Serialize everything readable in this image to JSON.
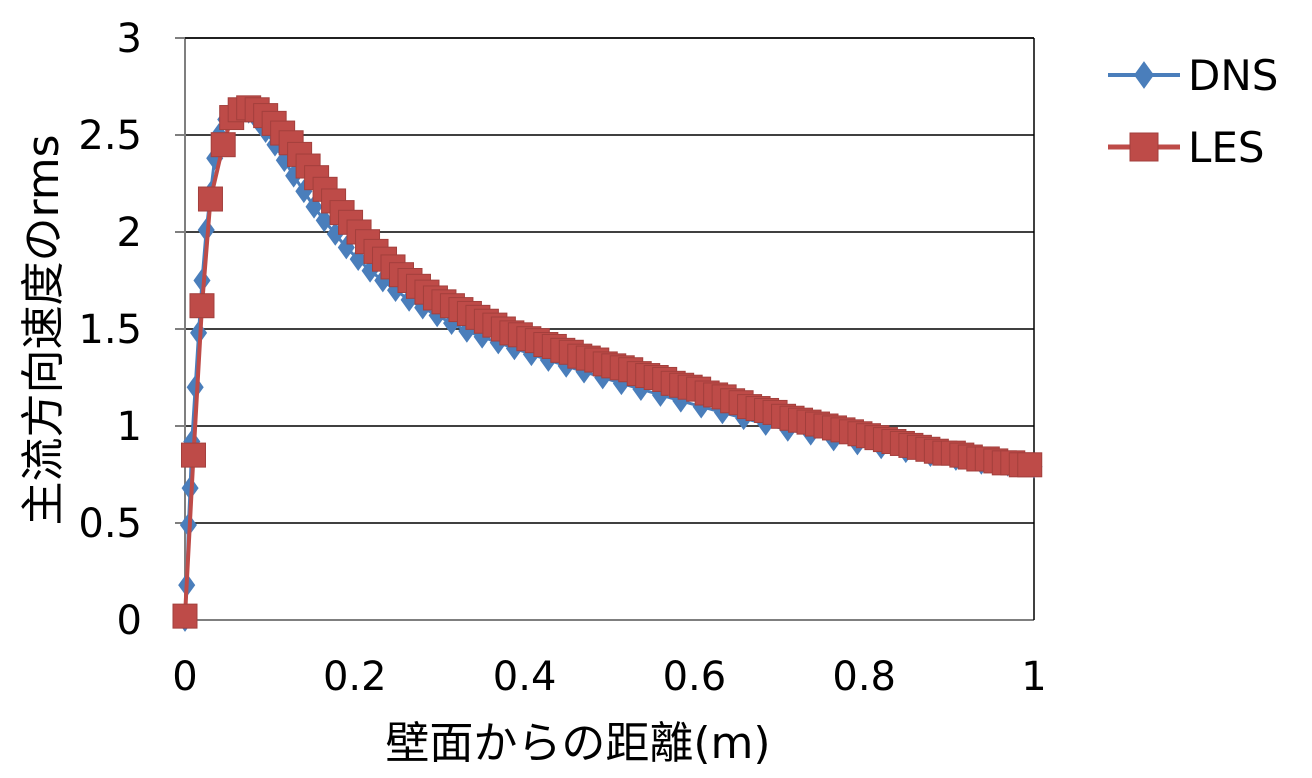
{
  "chart_data": {
    "type": "line",
    "xlabel": "壁面からの距離(m)",
    "ylabel": "主流方向速度のrms",
    "xlim": [
      0,
      1
    ],
    "ylim": [
      0,
      3
    ],
    "x_ticks": [
      "0",
      "0.2",
      "0.4",
      "0.6",
      "0.8",
      "1"
    ],
    "y_ticks": [
      "0",
      "0.5",
      "1",
      "1.5",
      "2",
      "2.5",
      "3"
    ],
    "grid": "horizontal",
    "legend_position": "top-right",
    "series": [
      {
        "name": "DNS",
        "color": "#4a7ebb",
        "marker": "diamond",
        "x": [
          0.0,
          0.002,
          0.004,
          0.006,
          0.008,
          0.012,
          0.016,
          0.02,
          0.025,
          0.03,
          0.035,
          0.04,
          0.048,
          0.056,
          0.065,
          0.075,
          0.085,
          0.095,
          0.106,
          0.117,
          0.128,
          0.14,
          0.152,
          0.164,
          0.177,
          0.19,
          0.204,
          0.218,
          0.233,
          0.248,
          0.264,
          0.28,
          0.297,
          0.314,
          0.332,
          0.35,
          0.369,
          0.388,
          0.408,
          0.428,
          0.449,
          0.47,
          0.492,
          0.514,
          0.537,
          0.56,
          0.584,
          0.608,
          0.633,
          0.658,
          0.684,
          0.71,
          0.737,
          0.764,
          0.792,
          0.82,
          0.849,
          0.878,
          0.908,
          0.938,
          0.969,
          1.0
        ],
        "y": [
          0.0,
          0.18,
          0.49,
          0.68,
          0.92,
          1.2,
          1.48,
          1.75,
          2.01,
          2.2,
          2.38,
          2.5,
          2.58,
          2.62,
          2.63,
          2.62,
          2.58,
          2.52,
          2.45,
          2.37,
          2.29,
          2.21,
          2.13,
          2.06,
          1.99,
          1.92,
          1.86,
          1.8,
          1.75,
          1.7,
          1.65,
          1.61,
          1.57,
          1.53,
          1.49,
          1.46,
          1.43,
          1.4,
          1.37,
          1.34,
          1.31,
          1.28,
          1.25,
          1.22,
          1.19,
          1.16,
          1.13,
          1.1,
          1.07,
          1.04,
          1.01,
          0.98,
          0.96,
          0.93,
          0.91,
          0.89,
          0.87,
          0.85,
          0.83,
          0.81,
          0.8,
          0.79
        ]
      },
      {
        "name": "LES",
        "color": "#be4b48",
        "marker": "square",
        "x": [
          0.0,
          0.01,
          0.02,
          0.03,
          0.045,
          0.055,
          0.065,
          0.075,
          0.085,
          0.095,
          0.105,
          0.115,
          0.125,
          0.135,
          0.145,
          0.155,
          0.165,
          0.175,
          0.185,
          0.195,
          0.205,
          0.215,
          0.225,
          0.235,
          0.245,
          0.255,
          0.265,
          0.275,
          0.285,
          0.295,
          0.305,
          0.315,
          0.325,
          0.335,
          0.345,
          0.355,
          0.365,
          0.375,
          0.385,
          0.395,
          0.405,
          0.415,
          0.425,
          0.435,
          0.445,
          0.455,
          0.465,
          0.475,
          0.485,
          0.495,
          0.505,
          0.515,
          0.525,
          0.535,
          0.545,
          0.555,
          0.565,
          0.575,
          0.585,
          0.595,
          0.605,
          0.615,
          0.625,
          0.635,
          0.645,
          0.655,
          0.665,
          0.675,
          0.685,
          0.695,
          0.705,
          0.715,
          0.725,
          0.735,
          0.745,
          0.755,
          0.765,
          0.775,
          0.785,
          0.795,
          0.805,
          0.815,
          0.825,
          0.835,
          0.845,
          0.855,
          0.865,
          0.875,
          0.885,
          0.895,
          0.905,
          0.915,
          0.925,
          0.935,
          0.945,
          0.955,
          0.965,
          0.975,
          0.985,
          0.995
        ],
        "y": [
          0.02,
          0.85,
          1.62,
          2.17,
          2.45,
          2.59,
          2.63,
          2.64,
          2.63,
          2.6,
          2.56,
          2.51,
          2.46,
          2.4,
          2.34,
          2.28,
          2.22,
          2.16,
          2.1,
          2.05,
          2.0,
          1.95,
          1.9,
          1.86,
          1.82,
          1.78,
          1.75,
          1.72,
          1.69,
          1.66,
          1.64,
          1.62,
          1.6,
          1.58,
          1.56,
          1.54,
          1.52,
          1.5,
          1.48,
          1.47,
          1.45,
          1.44,
          1.42,
          1.41,
          1.39,
          1.38,
          1.36,
          1.35,
          1.34,
          1.32,
          1.31,
          1.3,
          1.29,
          1.27,
          1.26,
          1.25,
          1.24,
          1.22,
          1.21,
          1.2,
          1.19,
          1.17,
          1.16,
          1.15,
          1.13,
          1.12,
          1.1,
          1.09,
          1.08,
          1.07,
          1.05,
          1.04,
          1.03,
          1.02,
          1.01,
          1.0,
          0.99,
          0.98,
          0.97,
          0.96,
          0.95,
          0.94,
          0.93,
          0.92,
          0.91,
          0.9,
          0.89,
          0.88,
          0.87,
          0.86,
          0.86,
          0.85,
          0.84,
          0.83,
          0.83,
          0.82,
          0.81,
          0.81,
          0.8,
          0.8
        ]
      }
    ]
  }
}
